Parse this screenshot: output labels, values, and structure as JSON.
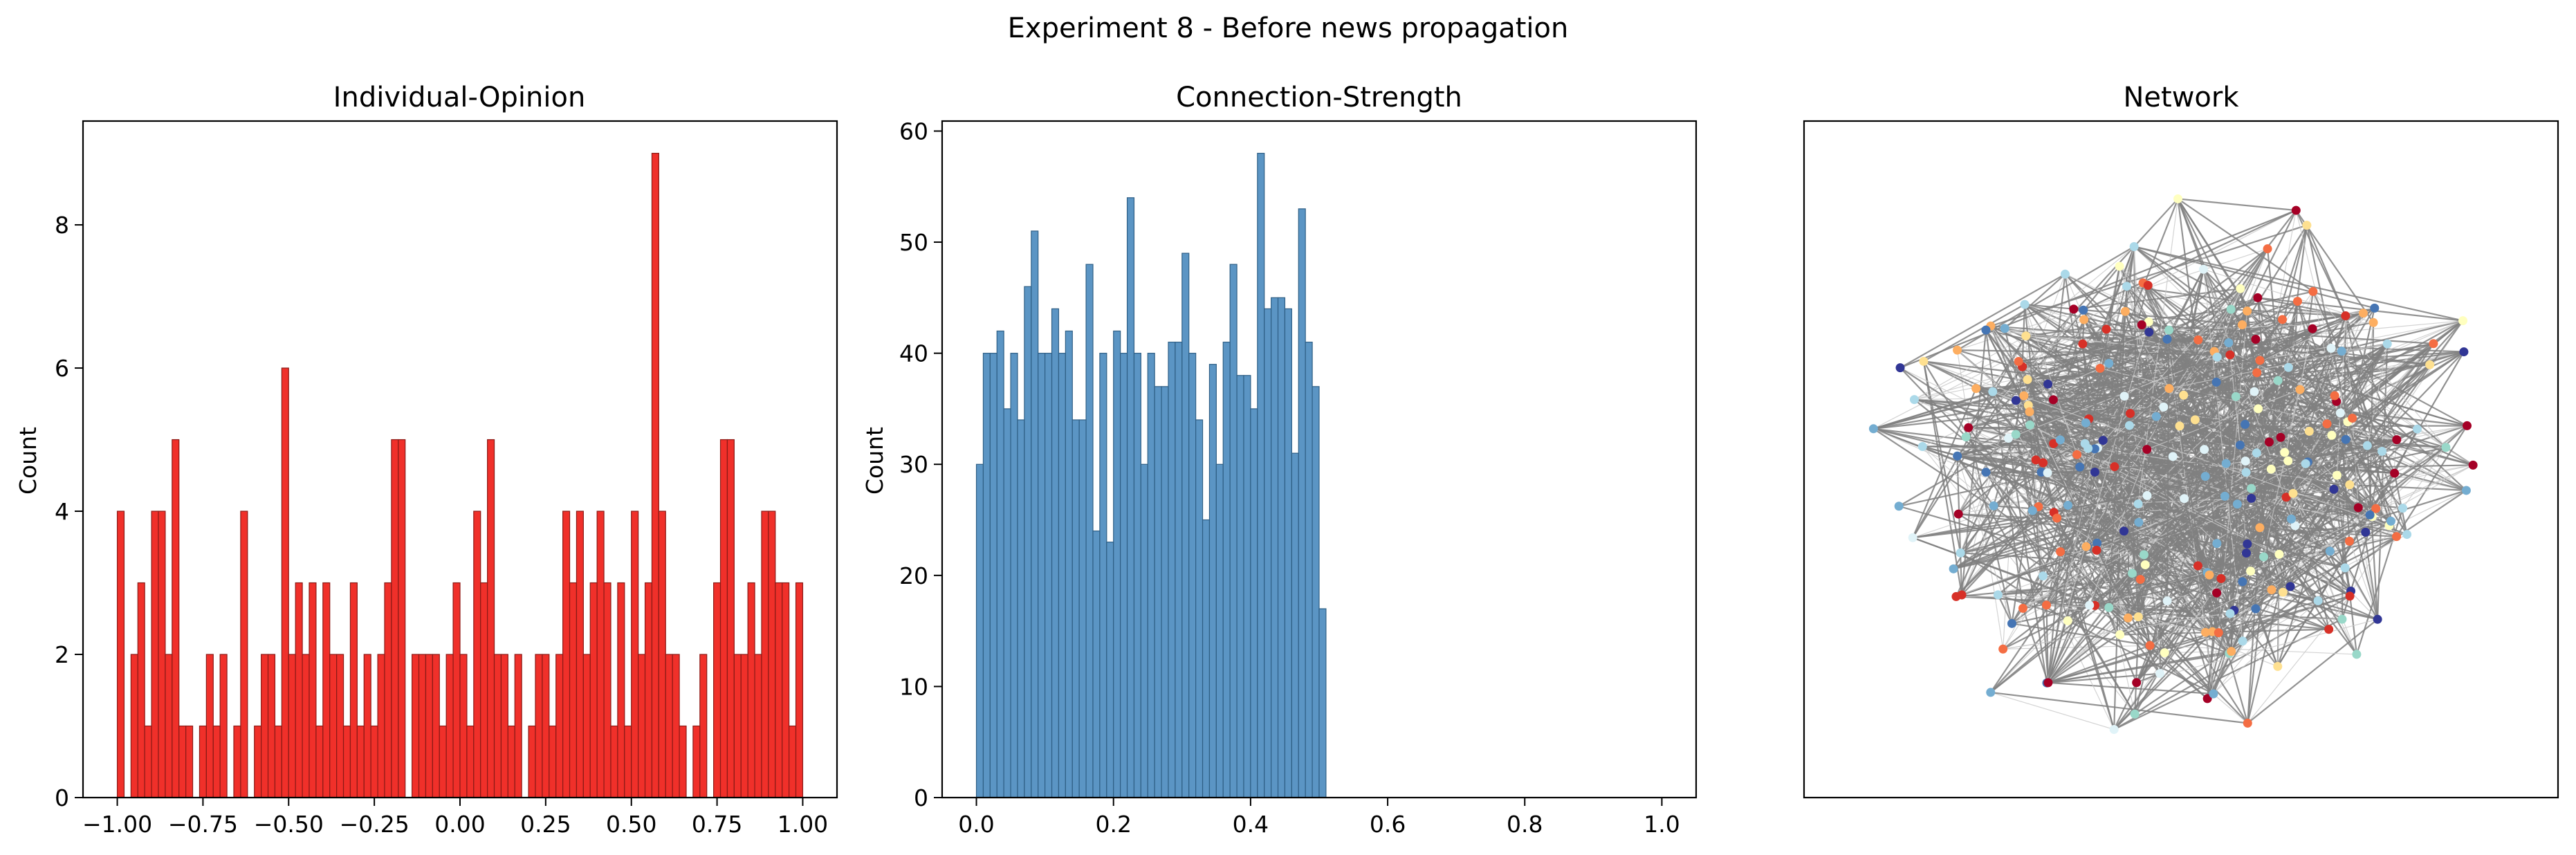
{
  "figure": {
    "suptitle": "Experiment 8 - Before news propagation"
  },
  "chart_data": [
    {
      "type": "bar",
      "title": "Individual-Opinion",
      "xlabel": "",
      "ylabel": "Count",
      "bar_color": "#f0302a",
      "edge_color": "#8a1a16",
      "xlim": [
        -1.1,
        1.1
      ],
      "ylim": [
        0,
        9.45
      ],
      "xticks": [
        -1.0,
        -0.75,
        -0.5,
        -0.25,
        0.0,
        0.25,
        0.5,
        0.75,
        1.0
      ],
      "xtick_labels": [
        "−1.00",
        "−0.75",
        "−0.50",
        "−0.25",
        "0.00",
        "0.25",
        "0.50",
        "0.75",
        "1.00"
      ],
      "yticks": [
        0,
        2,
        4,
        6,
        8
      ],
      "ytick_labels": [
        "0",
        "2",
        "4",
        "6",
        "8"
      ],
      "bin_start": -1.0,
      "bin_width": 0.02,
      "values": [
        4,
        0,
        2,
        3,
        1,
        4,
        4,
        2,
        5,
        1,
        1,
        0,
        1,
        2,
        1,
        2,
        0,
        1,
        4,
        0,
        1,
        2,
        2,
        1,
        6,
        2,
        3,
        2,
        3,
        1,
        3,
        2,
        2,
        1,
        3,
        1,
        2,
        1,
        2,
        3,
        5,
        5,
        0,
        2,
        2,
        2,
        2,
        1,
        2,
        3,
        2,
        1,
        4,
        3,
        5,
        2,
        2,
        1,
        2,
        0,
        1,
        2,
        2,
        1,
        2,
        4,
        3,
        4,
        2,
        3,
        4,
        3,
        1,
        3,
        1,
        4,
        2,
        3,
        9,
        4,
        2,
        2,
        1,
        0,
        1,
        2,
        0,
        3,
        5,
        5,
        2,
        2,
        3,
        2,
        4,
        4,
        3,
        3,
        1,
        3
      ]
    },
    {
      "type": "bar",
      "title": "Connection-Strength",
      "xlabel": "",
      "ylabel": "Count",
      "bar_color": "#5b95c4",
      "edge_color": "#2f5f85",
      "xlim": [
        -0.05,
        1.05
      ],
      "ylim": [
        0,
        60.9
      ],
      "xticks": [
        0.0,
        0.2,
        0.4,
        0.6,
        0.8,
        1.0
      ],
      "xtick_labels": [
        "0.0",
        "0.2",
        "0.4",
        "0.6",
        "0.8",
        "1.0"
      ],
      "yticks": [
        0,
        10,
        20,
        30,
        40,
        50,
        60
      ],
      "ytick_labels": [
        "0",
        "10",
        "20",
        "30",
        "40",
        "50",
        "60"
      ],
      "bin_start": 0.0,
      "bin_width": 0.01,
      "values": [
        30,
        40,
        40,
        42,
        35,
        40,
        34,
        46,
        51,
        40,
        40,
        44,
        40,
        42,
        34,
        34,
        48,
        24,
        40,
        23,
        42,
        40,
        54,
        40,
        30,
        40,
        37,
        37,
        41,
        41,
        49,
        40,
        34,
        25,
        39,
        30,
        41,
        48,
        38,
        38,
        35,
        58,
        44,
        45,
        45,
        44,
        31,
        53,
        41,
        37,
        17
      ]
    },
    {
      "type": "network",
      "title": "Network",
      "node_colors": [
        "#a50026",
        "#d73027",
        "#f46d43",
        "#fdae61",
        "#fee090",
        "#ffffbf",
        "#e0f3f8",
        "#abd9e9",
        "#74add1",
        "#4575b4",
        "#313695",
        "#99d8c9"
      ],
      "edge_color": "#808080",
      "light_edge_color": "#c8c8c8"
    }
  ]
}
